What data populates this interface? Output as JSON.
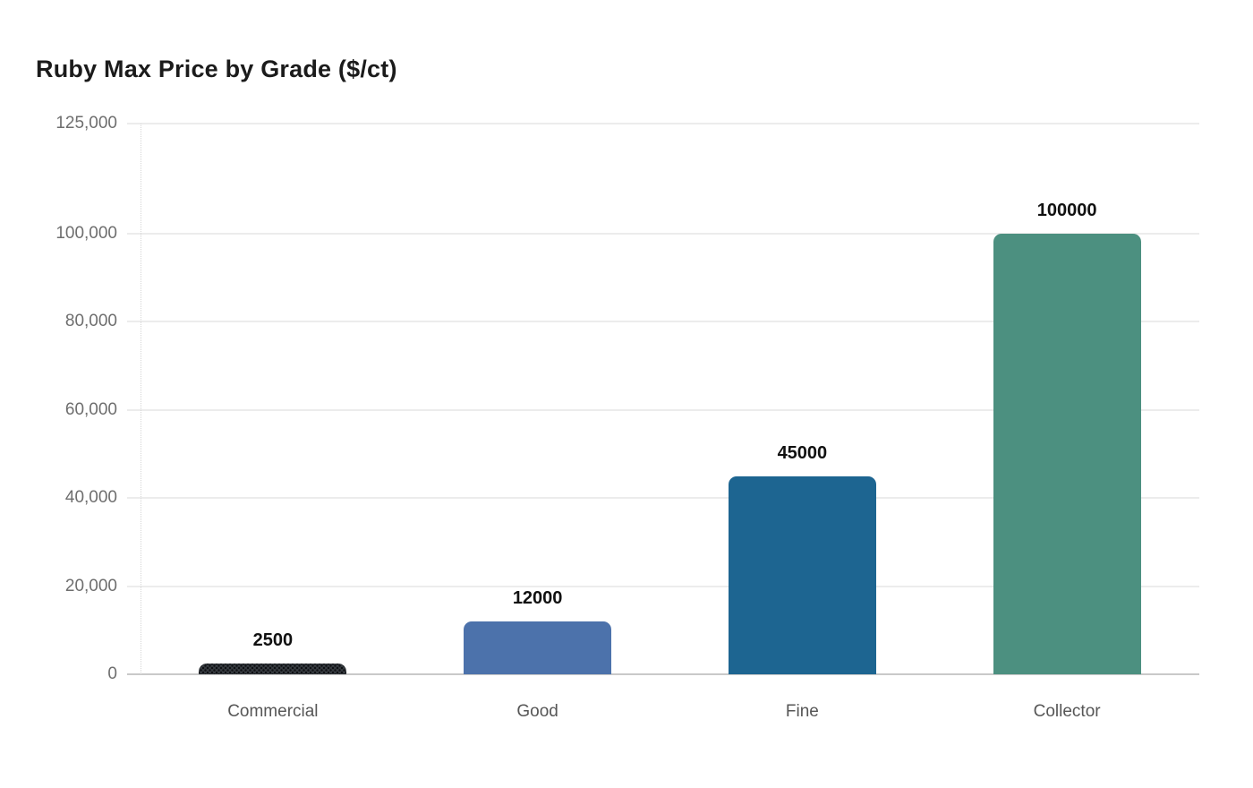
{
  "header": {
    "title": "Ruby Max Price by Grade ($/ct)"
  },
  "chart_data": {
    "type": "bar",
    "title": "Ruby Max Price by Grade ($/ct)",
    "categories": [
      "Commercial",
      "Good",
      "Fine",
      "Collector"
    ],
    "values": [
      2500,
      12000,
      45000,
      100000
    ],
    "value_labels": [
      "2500",
      "12000",
      "45000",
      "100000"
    ],
    "bar_colors": [
      "#363b40",
      "#4c72ab",
      "#1d6591",
      "#4c9080"
    ],
    "bar_patterns": [
      "dots",
      "solid",
      "solid",
      "solid"
    ],
    "bar_pattern_dot_color": "#0e1013",
    "xlabel": "",
    "ylabel": "",
    "ylim": [
      0,
      125000
    ],
    "yticks": [
      0,
      20000,
      40000,
      60000,
      80000,
      100000,
      125000
    ],
    "ytick_labels": [
      "0",
      "20,000",
      "40,000",
      "60,000",
      "80,000",
      "100,000",
      "125,000"
    ],
    "grid": "horizontal",
    "legend": "none",
    "colors": {
      "grid": "#ececec",
      "axis_line": "#c9c9c9",
      "tick_text": "#6e6e6e",
      "category_text": "#565656",
      "value_text": "#111111",
      "title_text": "#1b1b1b",
      "background": "#ffffff"
    }
  }
}
